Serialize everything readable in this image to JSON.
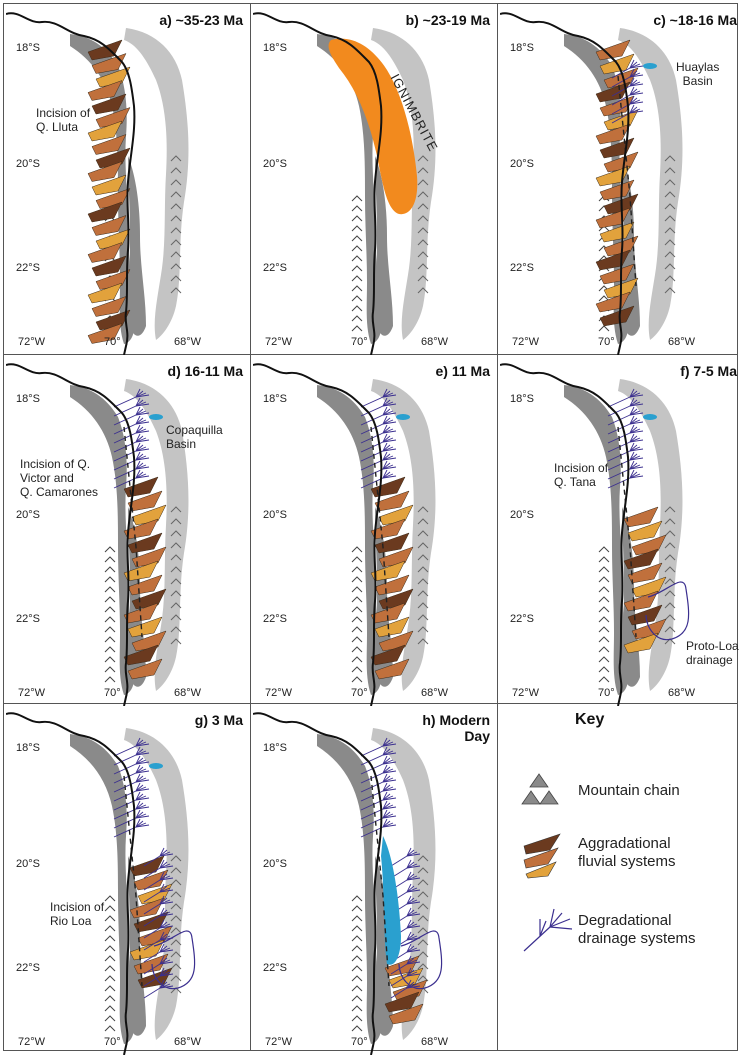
{
  "panels": [
    {
      "id": "a",
      "title": "a) ~35-23 Ma"
    },
    {
      "id": "b",
      "title": "b) ~23-19 Ma",
      "ignimbrite_label": "IGNIMBRITE"
    },
    {
      "id": "c",
      "title": "c) ~18-16 Ma",
      "note": "Huaylas\nBasin"
    },
    {
      "id": "d",
      "title": "d) 16-11 Ma",
      "note": "Copaquilla\nBasin",
      "note2": "Incision of Q.\nVictor and\nQ. Camarones"
    },
    {
      "id": "e",
      "title": "e) 11 Ma"
    },
    {
      "id": "f",
      "title": "f) 7-5 Ma",
      "note": "Incision of\nQ. Tana",
      "note2": "Proto-Loa\ndrainage"
    },
    {
      "id": "g",
      "title": "g) 3 Ma",
      "note": "Incision of\nRio Loa"
    },
    {
      "id": "h",
      "title": "h) Modern\nDay"
    }
  ],
  "panel_a_note": "Incision of\nQ. Lluta",
  "latitudes": [
    "18°S",
    "20°S",
    "22°S"
  ],
  "longitudes": [
    "72°W",
    "70°",
    "68°W"
  ],
  "key": {
    "title": "Key",
    "items": [
      {
        "label": "Mountain chain",
        "icon": "mountain-icon"
      },
      {
        "label": "Aggradational\nfluvial systems",
        "icon": "fan-icon"
      },
      {
        "label": "Degradational\ndrainage systems",
        "icon": "drainage-icon"
      }
    ]
  },
  "colors": {
    "mountain_dark": "#8a8a8a",
    "mountain_light": "#c4c4c4",
    "fan_dark": "#6b3a1f",
    "fan_mid": "#c0703c",
    "fan_light": "#e2a23c",
    "ignimbrite": "#f28a1e",
    "basin": "#2aa0cf",
    "drainage": "#3b2f8f"
  }
}
